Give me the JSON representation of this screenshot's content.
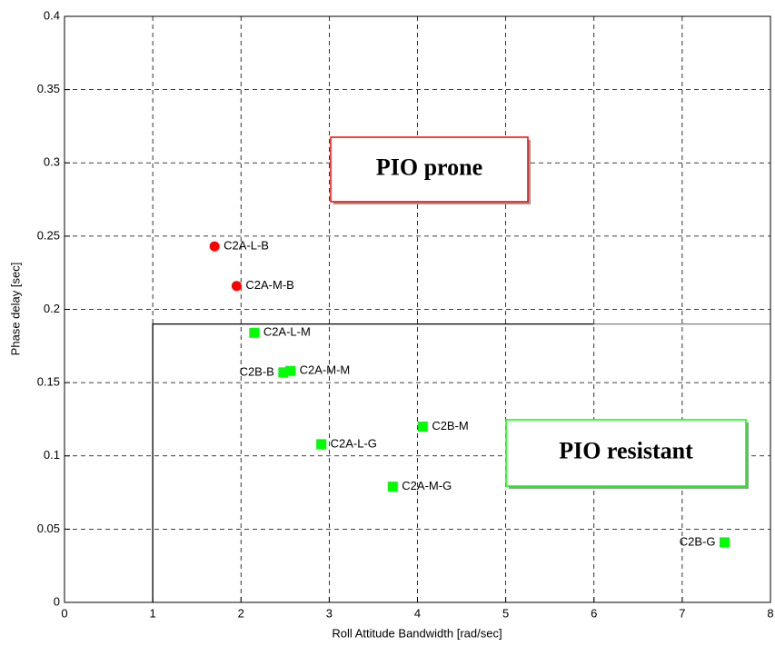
{
  "chart_data": {
    "type": "scatter",
    "xlabel": "Roll Attitude Bandwidth [rad/sec]",
    "ylabel": "Phase delay [sec]",
    "xlim": [
      0,
      8
    ],
    "xticks": [
      0,
      1,
      2,
      3,
      4,
      5,
      6,
      7,
      8
    ],
    "ylim": [
      0,
      0.4
    ],
    "yticks": [
      0,
      0.05,
      0.1,
      0.15,
      0.2,
      0.25,
      0.3,
      0.35,
      0.4
    ],
    "grid": true,
    "points": [
      {
        "label": "C2A-L-B",
        "x": 1.7,
        "y": 0.243,
        "color": "#ff0000",
        "marker": "circle"
      },
      {
        "label": "C2A-M-B",
        "x": 1.95,
        "y": 0.216,
        "color": "#ff0000",
        "marker": "circle"
      },
      {
        "label": "C2A-L-M",
        "x": 2.15,
        "y": 0.184,
        "color": "#00ff00",
        "marker": "square"
      },
      {
        "label": "C2B-B",
        "x": 2.48,
        "y": 0.157,
        "color": "#00ff00",
        "marker": "square"
      },
      {
        "label": "C2A-M-M",
        "x": 2.56,
        "y": 0.158,
        "color": "#00ff00",
        "marker": "square"
      },
      {
        "label": "C2A-L-G",
        "x": 2.91,
        "y": 0.108,
        "color": "#00ff00",
        "marker": "square"
      },
      {
        "label": "C2B-M",
        "x": 4.06,
        "y": 0.12,
        "color": "#00ff00",
        "marker": "square"
      },
      {
        "label": "C2A-M-G",
        "x": 3.72,
        "y": 0.079,
        "color": "#00ff00",
        "marker": "square"
      },
      {
        "label": "C2B-G",
        "x": 7.48,
        "y": 0.041,
        "color": "#00ff00",
        "marker": "square"
      }
    ],
    "lines": [
      {
        "x": [
          1,
          1,
          6
        ],
        "y": [
          0,
          0.19,
          0.19
        ],
        "color": "#000000"
      },
      {
        "x": [
          6,
          8
        ],
        "y": [
          0.19,
          0.19
        ],
        "color": "#808080"
      }
    ],
    "annotations": [
      {
        "text": "PIO prone",
        "color": "#ff0000"
      },
      {
        "text": "PIO resistant",
        "color": "#00ff00"
      }
    ]
  }
}
